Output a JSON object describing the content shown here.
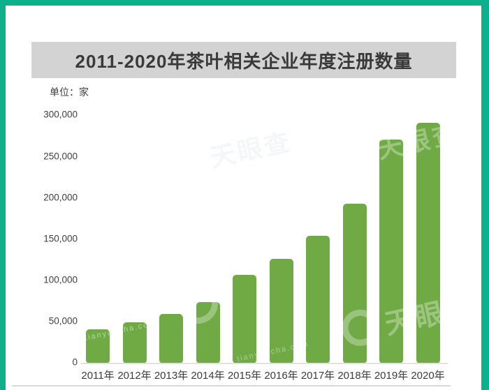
{
  "frame": {
    "border_color": "#0cb08a",
    "background": "#ffffff",
    "title_bar_bg": "#d3d3d3"
  },
  "title": {
    "text": "2011-2020年茶叶相关企业年度注册数量",
    "color": "#3a3a3a"
  },
  "unit_label": "单位：家",
  "watermark": {
    "brand": "天眼查",
    "domain": "tianyancha.com"
  },
  "chart_data": {
    "type": "bar",
    "title": "2011-2020年茶叶相关企业年度注册数量",
    "xlabel": "",
    "ylabel": "单位：家",
    "categories": [
      "2011年",
      "2012年",
      "2013年",
      "2014年",
      "2015年",
      "2016年",
      "2017年",
      "2018年",
      "2019年",
      "2020年"
    ],
    "values": [
      40000,
      48000,
      58000,
      73000,
      106000,
      125000,
      153000,
      192000,
      270000,
      290000
    ],
    "bar_color": "#6faa45",
    "ylim": [
      0,
      300000
    ],
    "yticks": [
      0,
      50000,
      100000,
      150000,
      200000,
      250000,
      300000
    ],
    "ytick_labels": [
      "0",
      "50,000",
      "100,000",
      "150,000",
      "200,000",
      "250,000",
      "300,000"
    ],
    "grid": false,
    "legend": false
  }
}
